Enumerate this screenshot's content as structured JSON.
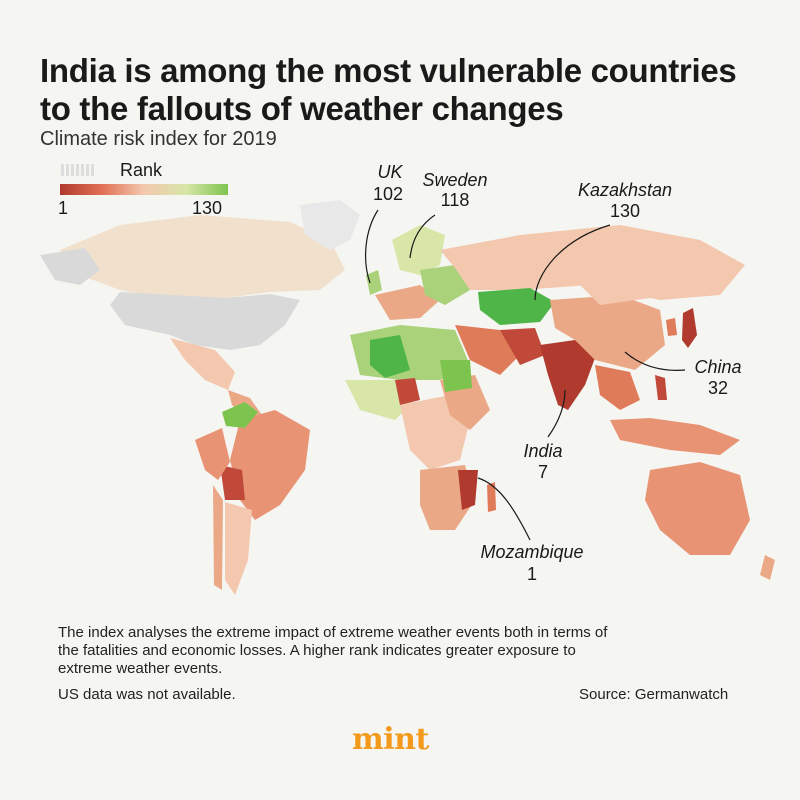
{
  "title": "India is among the most vulnerable countries to the fallouts of weather changes",
  "subtitle": "Climate risk index for 2019",
  "legend": {
    "label": "Rank",
    "min_label": "1",
    "max_label": "130",
    "colors": [
      "#b03a2e",
      "#e17055",
      "#f3c8ae",
      "#d8e6a8",
      "#7dc44e"
    ],
    "no_data_color": "#d9d9d9"
  },
  "annotations": [
    {
      "name": "UK",
      "rank": "102"
    },
    {
      "name": "Sweden",
      "rank": "118"
    },
    {
      "name": "Kazakhstan",
      "rank": "130"
    },
    {
      "name": "China",
      "rank": "32"
    },
    {
      "name": "India",
      "rank": "7"
    },
    {
      "name": "Mozambique",
      "rank": "1"
    }
  ],
  "note": "The index analyses the extreme impact of extreme weather events both in terms of the fatalities and economic losses. A higher rank indicates greater exposure to extreme weather events.",
  "note2": "US data was not available.",
  "source": "Source: Germanwatch",
  "logo": "mint"
}
